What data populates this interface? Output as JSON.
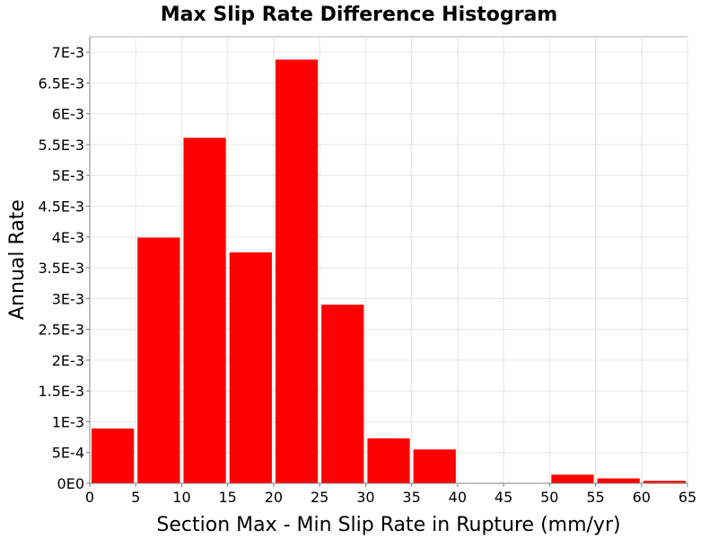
{
  "chart_data": {
    "type": "bar",
    "title": "Max Slip Rate Difference Histogram",
    "xlabel": "Section Max - Min Slip Rate in Rupture (mm/yr)",
    "ylabel": "Annual Rate",
    "xlim": [
      0,
      65
    ],
    "ylim": [
      0,
      0.00725
    ],
    "grid": true,
    "legend": "none",
    "bar_color": "#ff0000",
    "x_ticks": [
      0,
      5,
      10,
      15,
      20,
      25,
      30,
      35,
      40,
      45,
      50,
      55,
      60,
      65
    ],
    "x_tick_labels": [
      "0",
      "5",
      "10",
      "15",
      "20",
      "25",
      "30",
      "35",
      "40",
      "45",
      "50",
      "55",
      "60",
      "65"
    ],
    "y_ticks": [
      0,
      0.0005,
      0.001,
      0.0015,
      0.002,
      0.0025,
      0.003,
      0.0035,
      0.004,
      0.0045,
      0.005,
      0.0055,
      0.006,
      0.0065,
      0.007
    ],
    "y_tick_labels": [
      "0E0",
      "5E-4",
      "1E-3",
      "1.5E-3",
      "2E-3",
      "2.5E-3",
      "3E-3",
      "3.5E-3",
      "4E-3",
      "4.5E-3",
      "5E-3",
      "5.5E-3",
      "6E-3",
      "6.5E-3",
      "7E-3"
    ],
    "bin_width": 5,
    "bins": [
      {
        "x_start": 0,
        "x_end": 5,
        "value": 0.00089
      },
      {
        "x_start": 5,
        "x_end": 10,
        "value": 0.00399
      },
      {
        "x_start": 10,
        "x_end": 15,
        "value": 0.00561
      },
      {
        "x_start": 15,
        "x_end": 20,
        "value": 0.00375
      },
      {
        "x_start": 20,
        "x_end": 25,
        "value": 0.00688
      },
      {
        "x_start": 25,
        "x_end": 30,
        "value": 0.0029
      },
      {
        "x_start": 30,
        "x_end": 35,
        "value": 0.00073
      },
      {
        "x_start": 35,
        "x_end": 40,
        "value": 0.00055
      },
      {
        "x_start": 40,
        "x_end": 45,
        "value": 0
      },
      {
        "x_start": 45,
        "x_end": 50,
        "value": 0
      },
      {
        "x_start": 50,
        "x_end": 55,
        "value": 0.00014
      },
      {
        "x_start": 55,
        "x_end": 60,
        "value": 8e-05
      },
      {
        "x_start": 60,
        "x_end": 65,
        "value": 4e-05
      }
    ]
  }
}
